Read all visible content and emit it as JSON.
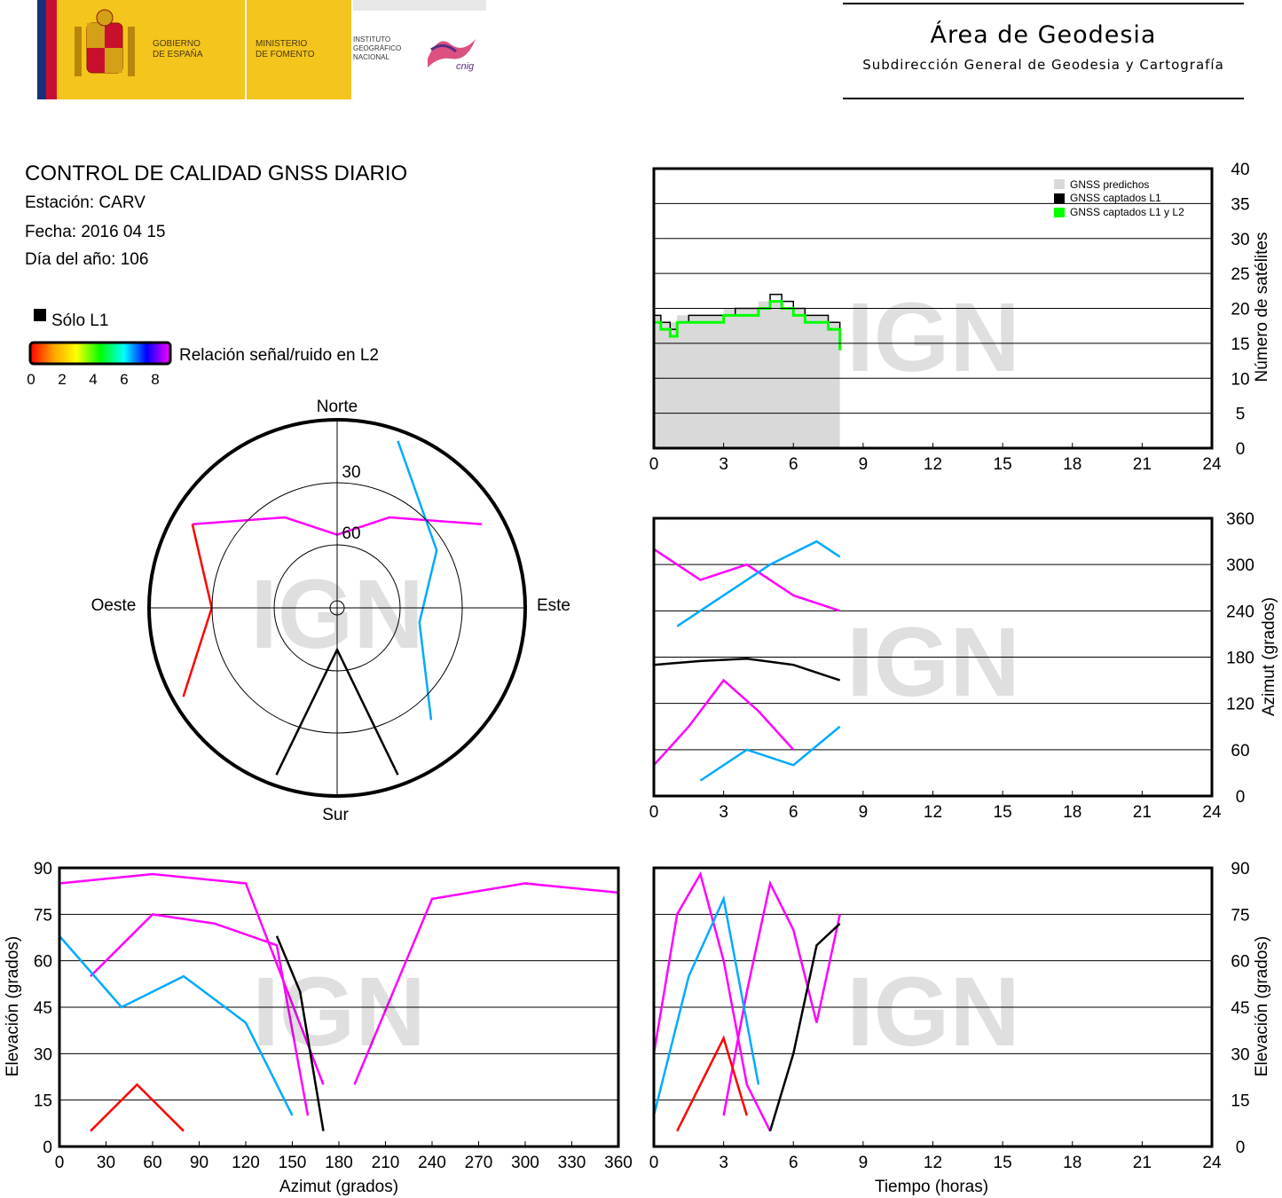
{
  "header": {
    "gov_line1": "GOBIERNO",
    "gov_line2": "DE ESPAÑA",
    "min_line1": "MINISTERIO",
    "min_line2": "DE FOMENTO",
    "inst_line1": "INSTITUTO",
    "inst_line2": "GEOGRÁFICO",
    "inst_line3": "NACIONAL",
    "cnig_logo_text": "cnig",
    "area_title": "Área de Geodesia",
    "area_subtitle": "Subdirección General de Geodesia y Cartografía"
  },
  "report": {
    "title": "CONTROL DE CALIDAD GNSS DIARIO",
    "station": "Estación: CARV",
    "date": "Fecha: 2016 04 15",
    "doy": "Día del año: 106"
  },
  "legend": {
    "l1_only": "Sólo L1",
    "snr_label": "Relación señal/ruido en L2",
    "snr_ticks": [
      "0",
      "2",
      "4",
      "6",
      "8"
    ],
    "l1_color": "#000000",
    "colormap": [
      "#ff0000",
      "#ffa500",
      "#ffff00",
      "#00ff00",
      "#00ffff",
      "#0000ff",
      "#ff00ff"
    ]
  },
  "watermark": "IGN",
  "colors": {
    "predicted": "#d9d9d9",
    "l1": "#000000",
    "l1l2": "#00ff00",
    "snr_high": "#ff00ff",
    "snr_mid": "#00aaff",
    "snr_low": "#ff0000"
  },
  "chart_data": [
    {
      "id": "skyplot",
      "type": "polar",
      "direction_labels": {
        "north": "Norte",
        "south": "Sur",
        "east": "Este",
        "west": "Oeste"
      },
      "ring_labels": [
        "30",
        "60"
      ],
      "rings_elevation": [
        0,
        30,
        60,
        90
      ],
      "sample_tracks": [
        {
          "az": [
            300,
            330,
            0,
            30,
            60
          ],
          "el": [
            10,
            40,
            55,
            40,
            10
          ],
          "snr": "high"
        },
        {
          "az": [
            200,
            180,
            160
          ],
          "el": [
            5,
            70,
            5
          ],
          "snr": "l1"
        },
        {
          "az": [
            20,
            60,
            100,
            140
          ],
          "el": [
            5,
            35,
            50,
            20
          ],
          "snr": "mid"
        },
        {
          "az": [
            240,
            270,
            300
          ],
          "el": [
            5,
            30,
            10
          ],
          "snr": "low"
        }
      ]
    },
    {
      "id": "satellite-count",
      "type": "area",
      "xlim": [
        0,
        24
      ],
      "ylim": [
        0,
        40
      ],
      "x_ticks": [
        "0",
        "3",
        "6",
        "9",
        "12",
        "15",
        "18",
        "21",
        "24"
      ],
      "y_ticks": [
        "0",
        "5",
        "10",
        "15",
        "20",
        "25",
        "30",
        "35",
        "40"
      ],
      "ylabel": "Número de satélites",
      "legend_entries": [
        "GNSS predichos",
        "GNSS captados L1",
        "GNSS captados L1 y L2"
      ],
      "x": [
        0,
        0.3,
        0.7,
        1,
        1.5,
        2,
        2.5,
        3,
        3.5,
        4,
        4.5,
        5,
        5.5,
        6,
        6.5,
        7,
        7.5,
        8
      ],
      "series": [
        {
          "name": "GNSS predichos",
          "values": [
            19,
            18,
            18,
            19,
            19,
            19,
            19,
            20,
            20,
            20,
            21,
            21,
            20,
            20,
            19,
            19,
            18,
            16
          ]
        },
        {
          "name": "GNSS captados L1",
          "values": [
            19,
            18,
            17,
            18,
            19,
            19,
            19,
            19,
            20,
            20,
            20,
            22,
            21,
            20,
            19,
            19,
            18,
            16
          ]
        },
        {
          "name": "GNSS captados L1 y L2",
          "values": [
            18,
            17,
            16,
            18,
            18,
            18,
            18,
            19,
            19,
            19,
            20,
            21,
            20,
            19,
            18,
            18,
            17,
            14
          ]
        }
      ]
    },
    {
      "id": "azimuth-time",
      "type": "scatter",
      "xlim": [
        0,
        24
      ],
      "ylim": [
        0,
        360
      ],
      "x_ticks": [
        "0",
        "3",
        "6",
        "9",
        "12",
        "15",
        "18",
        "21",
        "24"
      ],
      "y_ticks": [
        "0",
        "60",
        "120",
        "180",
        "240",
        "300",
        "360"
      ],
      "ylabel": "Azimut (grados)",
      "tracks": [
        {
          "x": [
            0,
            2,
            4,
            6,
            8
          ],
          "y": [
            320,
            280,
            300,
            260,
            240
          ],
          "snr": "high"
        },
        {
          "x": [
            0,
            1.5,
            3,
            4.5,
            6
          ],
          "y": [
            40,
            90,
            150,
            110,
            60
          ],
          "snr": "high"
        },
        {
          "x": [
            1,
            3,
            5,
            7,
            8
          ],
          "y": [
            220,
            260,
            300,
            330,
            310
          ],
          "snr": "mid"
        },
        {
          "x": [
            2,
            4,
            6,
            8
          ],
          "y": [
            20,
            60,
            40,
            90
          ],
          "snr": "mid"
        },
        {
          "x": [
            0,
            2,
            4,
            6,
            8
          ],
          "y": [
            170,
            175,
            178,
            170,
            150
          ],
          "snr": "l1"
        }
      ]
    },
    {
      "id": "elevation-azimuth",
      "type": "scatter",
      "xlim": [
        0,
        360
      ],
      "ylim": [
        0,
        90
      ],
      "x_ticks": [
        "0",
        "30",
        "60",
        "90",
        "120",
        "150",
        "180",
        "210",
        "240",
        "270",
        "300",
        "330",
        "360"
      ],
      "y_ticks": [
        "0",
        "15",
        "30",
        "45",
        "60",
        "75",
        "90"
      ],
      "xlabel": "Azimut (grados)",
      "ylabel": "Elevación (grados)",
      "tracks": [
        {
          "x": [
            0,
            60,
            120,
            170
          ],
          "y": [
            85,
            88,
            85,
            20
          ],
          "snr": "high"
        },
        {
          "x": [
            190,
            240,
            300,
            360
          ],
          "y": [
            20,
            80,
            85,
            82
          ],
          "snr": "high"
        },
        {
          "x": [
            20,
            60,
            100,
            140,
            160
          ],
          "y": [
            55,
            75,
            72,
            65,
            10
          ],
          "snr": "high"
        },
        {
          "x": [
            0,
            40,
            80,
            120,
            150
          ],
          "y": [
            68,
            45,
            55,
            40,
            10
          ],
          "snr": "mid"
        },
        {
          "x": [
            140,
            155,
            170
          ],
          "y": [
            68,
            50,
            5
          ],
          "snr": "l1"
        },
        {
          "x": [
            20,
            50,
            80
          ],
          "y": [
            5,
            20,
            5
          ],
          "snr": "low"
        }
      ]
    },
    {
      "id": "elevation-time",
      "type": "scatter",
      "xlim": [
        0,
        24
      ],
      "ylim": [
        0,
        90
      ],
      "x_ticks": [
        "0",
        "3",
        "6",
        "9",
        "12",
        "15",
        "18",
        "21",
        "24"
      ],
      "y_ticks": [
        "0",
        "15",
        "30",
        "45",
        "60",
        "75",
        "90"
      ],
      "xlabel": "Tiempo (horas)",
      "ylabel": "Elevación (grados)",
      "tracks": [
        {
          "x": [
            0,
            1,
            2,
            3,
            4,
            5
          ],
          "y": [
            30,
            75,
            88,
            60,
            20,
            5
          ],
          "snr": "high"
        },
        {
          "x": [
            3,
            4,
            5,
            6,
            7,
            8
          ],
          "y": [
            10,
            50,
            85,
            70,
            40,
            75
          ],
          "snr": "high"
        },
        {
          "x": [
            0,
            1.5,
            3,
            4.5
          ],
          "y": [
            10,
            55,
            80,
            20
          ],
          "snr": "mid"
        },
        {
          "x": [
            5,
            6,
            7,
            8
          ],
          "y": [
            5,
            30,
            65,
            72
          ],
          "snr": "l1"
        },
        {
          "x": [
            1,
            2,
            3,
            4
          ],
          "y": [
            5,
            20,
            35,
            10
          ],
          "snr": "low"
        }
      ]
    }
  ]
}
